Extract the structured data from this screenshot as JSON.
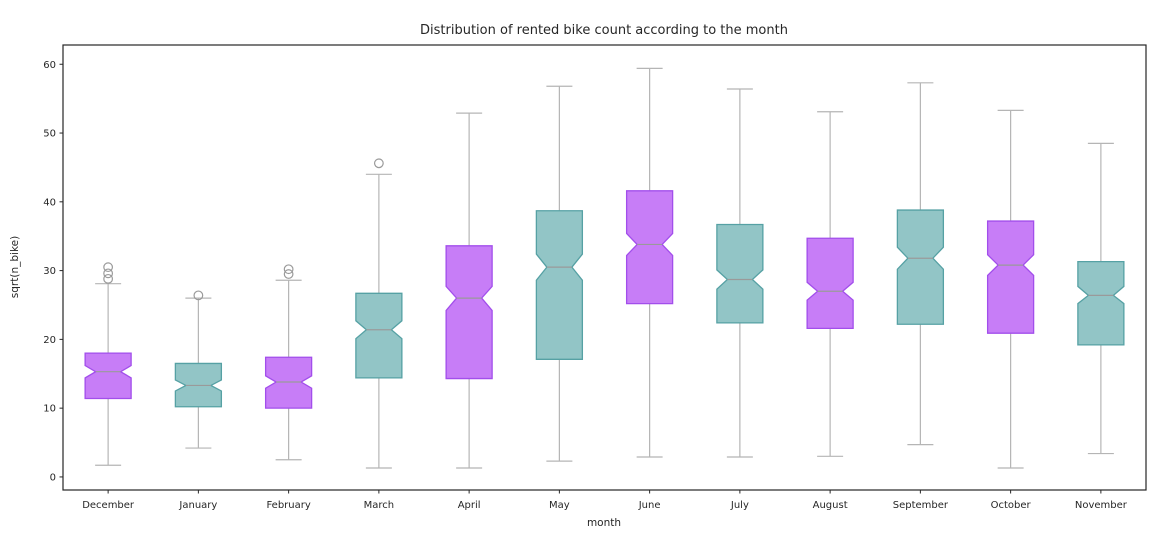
{
  "chart_data": {
    "type": "boxplot",
    "title": "Distribution of rented bike count according to the month",
    "xlabel": "month",
    "ylabel": "sqrt(n_bike)",
    "ylim": [
      -1.9,
      62.8
    ],
    "yticks": [
      0,
      10,
      20,
      30,
      40,
      50,
      60
    ],
    "grid": false,
    "legend": "none",
    "categories": [
      "December",
      "January",
      "February",
      "March",
      "April",
      "May",
      "June",
      "July",
      "August",
      "September",
      "October",
      "November"
    ],
    "colors": {
      "purple_fill": "#c77df7",
      "purple_edge": "#a24eeb",
      "teal_fill": "#92c5c6",
      "teal_edge": "#56a1a4",
      "whisker": "#b5b5b5",
      "median": "#9a9a9a",
      "outlier": "#9a9a9a",
      "frame": "#262626"
    },
    "boxes": [
      {
        "month": "December",
        "color": "purple",
        "whisker_low": 1.7,
        "q1": 11.4,
        "notch_low": 14.4,
        "median": 15.3,
        "notch_high": 16.2,
        "q3": 18.0,
        "whisker_high": 28.1,
        "outliers": [
          28.8,
          29.6,
          30.5
        ]
      },
      {
        "month": "January",
        "color": "teal",
        "whisker_low": 4.2,
        "q1": 10.2,
        "notch_low": 12.5,
        "median": 13.3,
        "notch_high": 14.1,
        "q3": 16.5,
        "whisker_high": 26.0,
        "outliers": [
          26.4
        ]
      },
      {
        "month": "February",
        "color": "purple",
        "whisker_low": 2.5,
        "q1": 10.0,
        "notch_low": 12.9,
        "median": 13.8,
        "notch_high": 14.7,
        "q3": 17.4,
        "whisker_high": 28.6,
        "outliers": [
          29.5,
          30.2
        ]
      },
      {
        "month": "March",
        "color": "teal",
        "whisker_low": 1.3,
        "q1": 14.4,
        "notch_low": 20.1,
        "median": 21.4,
        "notch_high": 22.7,
        "q3": 26.7,
        "whisker_high": 44.0,
        "outliers": [
          45.6
        ]
      },
      {
        "month": "April",
        "color": "purple",
        "whisker_low": 1.3,
        "q1": 14.3,
        "notch_low": 24.2,
        "median": 26.0,
        "notch_high": 27.7,
        "q3": 33.6,
        "whisker_high": 52.9,
        "outliers": []
      },
      {
        "month": "May",
        "color": "teal",
        "whisker_low": 2.3,
        "q1": 17.1,
        "notch_low": 28.6,
        "median": 30.5,
        "notch_high": 32.4,
        "q3": 38.7,
        "whisker_high": 56.8,
        "outliers": []
      },
      {
        "month": "June",
        "color": "purple",
        "whisker_low": 2.9,
        "q1": 25.2,
        "notch_low": 32.2,
        "median": 33.8,
        "notch_high": 35.4,
        "q3": 41.6,
        "whisker_high": 59.4,
        "outliers": []
      },
      {
        "month": "July",
        "color": "teal",
        "whisker_low": 2.9,
        "q1": 22.4,
        "notch_low": 27.3,
        "median": 28.7,
        "notch_high": 30.1,
        "q3": 36.7,
        "whisker_high": 56.4,
        "outliers": []
      },
      {
        "month": "August",
        "color": "purple",
        "whisker_low": 3.0,
        "q1": 21.6,
        "notch_low": 25.7,
        "median": 27.0,
        "notch_high": 28.3,
        "q3": 34.7,
        "whisker_high": 53.1,
        "outliers": []
      },
      {
        "month": "September",
        "color": "teal",
        "whisker_low": 4.7,
        "q1": 22.2,
        "notch_low": 30.2,
        "median": 31.8,
        "notch_high": 33.4,
        "q3": 38.8,
        "whisker_high": 57.3,
        "outliers": []
      },
      {
        "month": "October",
        "color": "purple",
        "whisker_low": 1.3,
        "q1": 20.9,
        "notch_low": 29.3,
        "median": 30.8,
        "notch_high": 32.3,
        "q3": 37.2,
        "whisker_high": 53.3,
        "outliers": []
      },
      {
        "month": "November",
        "color": "teal",
        "whisker_low": 3.4,
        "q1": 19.2,
        "notch_low": 25.2,
        "median": 26.4,
        "notch_high": 27.7,
        "q3": 31.3,
        "whisker_high": 48.5,
        "outliers": []
      }
    ]
  }
}
